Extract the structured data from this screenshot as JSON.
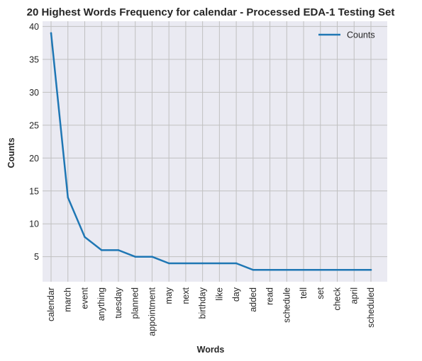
{
  "chart_data": {
    "type": "line",
    "title": "20 Highest Words Frequency for calendar - Processed EDA-1 Testing Set",
    "xlabel": "Words",
    "ylabel": "Counts",
    "categories": [
      "calendar",
      "march",
      "event",
      "anything",
      "tuesday",
      "planned",
      "appointment",
      "may",
      "next",
      "birthday",
      "like",
      "day",
      "added",
      "read",
      "schedule",
      "tell",
      "set",
      "check",
      "april",
      "scheduled"
    ],
    "series": [
      {
        "name": "Counts",
        "values": [
          39,
          14,
          8,
          6,
          6,
          5,
          5,
          4,
          4,
          4,
          4,
          4,
          3,
          3,
          3,
          3,
          3,
          3,
          3,
          3
        ]
      }
    ],
    "ylim": [
      1.2,
      40.8
    ],
    "yticks": [
      5,
      10,
      15,
      20,
      25,
      30,
      35,
      40
    ],
    "grid": true,
    "legend_position": "top-right",
    "colors": {
      "line": "#1f77b4",
      "plot_background": "#eaeaf2",
      "grid": "#c0c0c0"
    }
  }
}
